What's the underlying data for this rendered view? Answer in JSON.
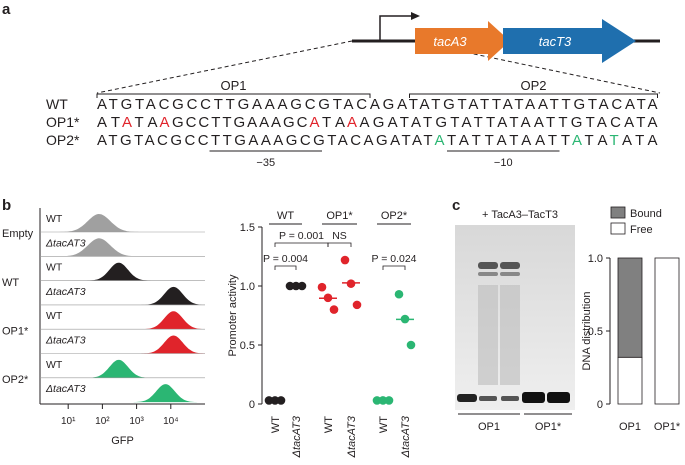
{
  "panel_labels": [
    "a",
    "b",
    "c"
  ],
  "operon": {
    "genes": [
      {
        "name": "tacA3",
        "color": "#e8792b"
      },
      {
        "name": "tacT3",
        "color": "#1f6fae"
      }
    ]
  },
  "sequences": {
    "sites": [
      "OP1",
      "OP2"
    ],
    "boxes": [
      "−35",
      "−10"
    ],
    "rows": [
      {
        "name": "WT",
        "segments": [
          {
            "text": "ATGTACGCCTTGAAAGCGTACAGATATGTATTATAATTGTACATA",
            "color": "#231f20"
          }
        ]
      },
      {
        "name": "OP1*",
        "segments": [
          {
            "text": "AT",
            "color": "#231f20"
          },
          {
            "text": "A",
            "color": "#e0242b"
          },
          {
            "text": "TA",
            "color": "#231f20"
          },
          {
            "text": "A",
            "color": "#e0242b"
          },
          {
            "text": "GCCTTGAAAGC",
            "color": "#231f20"
          },
          {
            "text": "A",
            "color": "#e0242b"
          },
          {
            "text": "TA",
            "color": "#231f20"
          },
          {
            "text": "A",
            "color": "#e0242b"
          },
          {
            "text": "AGATATGTATTATAATTGTACATA",
            "color": "#231f20"
          }
        ]
      },
      {
        "name": "OP2*",
        "segments": [
          {
            "text": "ATGTACGCCTTGAAAGCGTACAGATAT",
            "color": "#231f20"
          },
          {
            "text": "A",
            "color": "#2bb673"
          },
          {
            "text": "TATTATAATT",
            "color": "#231f20"
          },
          {
            "text": "A",
            "color": "#2bb673"
          },
          {
            "text": "TA",
            "color": "#231f20"
          },
          {
            "text": "T",
            "color": "#2bb673"
          },
          {
            "text": "ATA",
            "color": "#231f20"
          }
        ]
      }
    ]
  },
  "flow": {
    "xlabel": "GFP",
    "log": true,
    "xlim": [
      1.5,
      100000
    ],
    "xticks": [
      {
        "value": 10,
        "label": "10¹"
      },
      {
        "value": 100,
        "label": "10²"
      },
      {
        "value": 1000,
        "label": "10³"
      },
      {
        "value": 10000,
        "label": "10⁴"
      }
    ],
    "groups": [
      {
        "name": "Empty",
        "rows": [
          {
            "label": "WT",
            "peak": 80,
            "color": "#a0a0a0"
          },
          {
            "label": "ΔtacAT3",
            "peak": 80,
            "color": "#a0a0a0"
          }
        ]
      },
      {
        "name": "WT",
        "rows": [
          {
            "label": "WT",
            "peak": 300,
            "color": "#231f20"
          },
          {
            "label": "ΔtacAT3",
            "peak": 12000,
            "color": "#231f20"
          }
        ]
      },
      {
        "name": "OP1*",
        "rows": [
          {
            "label": "WT",
            "peak": 12000,
            "color": "#e0242b"
          },
          {
            "label": "ΔtacAT3",
            "peak": 12000,
            "color": "#e0242b"
          }
        ]
      },
      {
        "name": "OP2*",
        "rows": [
          {
            "label": "WT",
            "peak": 300,
            "color": "#2bb673"
          },
          {
            "label": "ΔtacAT3",
            "peak": 7000,
            "color": "#2bb673"
          }
        ]
      }
    ]
  },
  "gel": {
    "title": "+ TacA3–TacT3",
    "lanes": [
      "OP1",
      "OP1*"
    ]
  },
  "chart_data": [
    {
      "type": "dot",
      "ylabel": "Promoter activity",
      "ylim": [
        0,
        1.5
      ],
      "yticks": [
        0,
        0.5,
        {
          "value": 1,
          "label": "1.0"
        },
        1.5
      ],
      "series": [
        {
          "name": "WT",
          "color": "#231f20",
          "categories": [
            "WT",
            "ΔtacAT3"
          ],
          "values": [
            [
              0.03,
              0.03,
              0.03
            ],
            [
              1,
              1,
              1
            ]
          ]
        },
        {
          "name": "OP1*",
          "color": "#e0242b",
          "categories": [
            "WT",
            "ΔtacAT3"
          ],
          "values": [
            [
              0.99,
              0.9,
              0.8
            ],
            [
              1.22,
              1.02,
              0.84
            ]
          ]
        },
        {
          "name": "OP2*",
          "color": "#2bb673",
          "categories": [
            "WT",
            "ΔtacAT3"
          ],
          "values": [
            [
              0.03,
              0.03,
              0.03
            ],
            [
              0.93,
              0.72,
              0.5
            ]
          ]
        }
      ],
      "annotations": [
        {
          "text": "P = 0.001"
        },
        {
          "text": "NS"
        },
        {
          "text": "P = 0.004"
        },
        {
          "text": "P = 0.024"
        }
      ]
    },
    {
      "type": "bar",
      "stacked": true,
      "ylabel": "DNA distribution",
      "ylim": [
        0,
        1
      ],
      "yticks": [
        0,
        0.5,
        {
          "value": 1,
          "label": "1.0"
        }
      ],
      "legend": "top",
      "categories": [
        "OP1",
        "OP1*"
      ],
      "series": [
        {
          "name": "Bound",
          "color": "#808080",
          "values": [
            0.68,
            0
          ]
        },
        {
          "name": "Free",
          "color": "#ffffff",
          "values": [
            0.32,
            1.0
          ],
          "errors": [
            0.05,
            null
          ]
        }
      ]
    }
  ]
}
